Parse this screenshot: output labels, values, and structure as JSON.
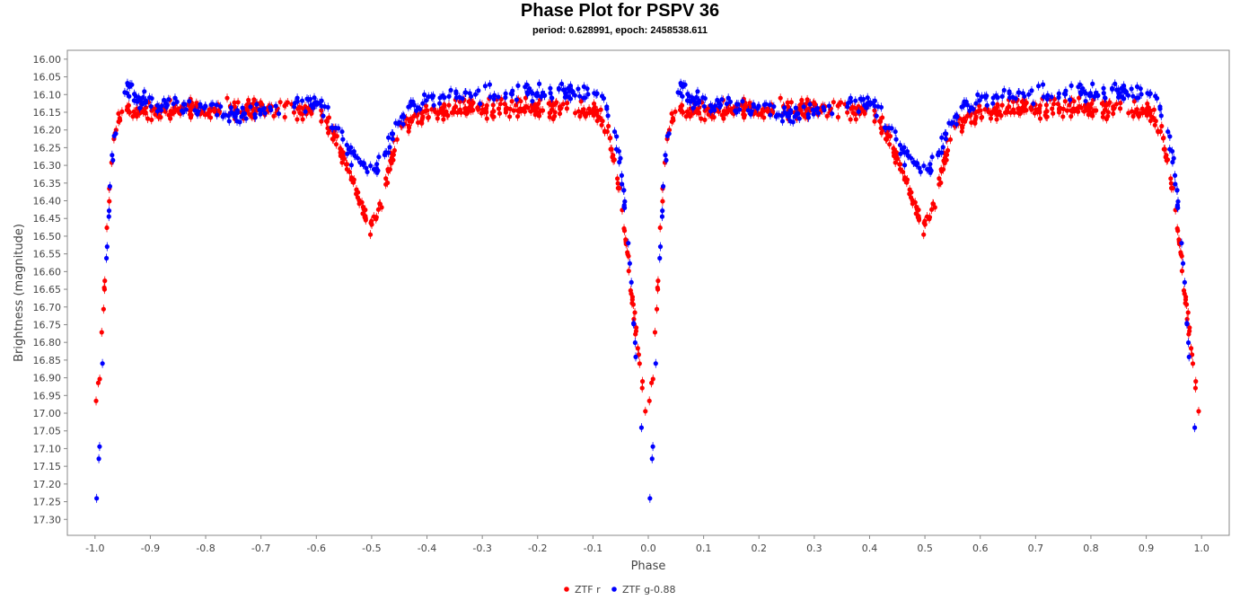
{
  "chart_data": {
    "type": "scatter",
    "title": "Phase Plot for PSPV 36",
    "subtitle": "period: 0.628991, epoch: 2458538.611",
    "xlabel": "Phase",
    "ylabel": "Brightness (magnitude)",
    "xlim": [
      -1.05,
      1.05
    ],
    "ylim": [
      17.345,
      15.975
    ],
    "y_inverted": true,
    "x_ticks": [
      "-1.0",
      "-0.9",
      "-0.8",
      "-0.7",
      "-0.6",
      "-0.5",
      "-0.4",
      "-0.3",
      "-0.2",
      "-0.1",
      "0.0",
      "0.1",
      "0.2",
      "0.3",
      "0.4",
      "0.5",
      "0.6",
      "0.7",
      "0.8",
      "0.9",
      "1.0"
    ],
    "y_ticks": [
      "16.00",
      "16.05",
      "16.10",
      "16.15",
      "16.20",
      "16.25",
      "16.30",
      "16.35",
      "16.40",
      "16.45",
      "16.50",
      "16.55",
      "16.60",
      "16.65",
      "16.70",
      "16.75",
      "16.80",
      "16.85",
      "16.90",
      "16.95",
      "17.00",
      "17.05",
      "17.10",
      "17.15",
      "17.20",
      "17.25",
      "17.30"
    ],
    "grid": false,
    "legend_placement": "bottom-center",
    "series": [
      {
        "name": "ZTF r",
        "color": "#ff0000",
        "x": [
          0.0,
          0.005,
          0.01,
          0.015,
          0.02,
          0.025,
          0.03,
          0.035,
          0.04,
          0.045,
          0.05,
          0.055,
          0.06,
          0.065,
          0.07,
          0.08,
          0.1,
          0.15,
          0.2,
          0.25,
          0.3,
          0.35,
          0.4,
          0.42,
          0.44,
          0.46,
          0.47,
          0.48,
          0.49,
          0.5,
          0.51,
          0.52,
          0.53,
          0.54,
          0.56,
          0.6,
          0.65,
          0.7,
          0.75,
          0.8,
          0.85,
          0.9,
          0.92,
          0.93,
          0.94,
          0.95,
          0.96,
          0.97,
          0.98,
          0.99,
          1.0
        ],
        "y": [
          17.0,
          16.95,
          16.85,
          16.72,
          16.55,
          16.4,
          16.3,
          16.22,
          16.18,
          16.16,
          16.15,
          16.15,
          16.14,
          16.14,
          16.15,
          16.15,
          16.15,
          16.14,
          16.14,
          16.14,
          16.14,
          16.14,
          16.15,
          16.18,
          16.24,
          16.32,
          16.37,
          16.42,
          16.45,
          16.47,
          16.44,
          16.4,
          16.33,
          16.26,
          16.18,
          16.15,
          16.14,
          16.14,
          16.14,
          16.14,
          16.14,
          16.15,
          16.18,
          16.22,
          16.3,
          16.4,
          16.52,
          16.65,
          16.8,
          16.93,
          17.02
        ]
      },
      {
        "name": "ZTF g-0.88",
        "color": "#0000ff",
        "x": [
          0.0,
          0.005,
          0.01,
          0.015,
          0.02,
          0.025,
          0.03,
          0.035,
          0.04,
          0.045,
          0.05,
          0.055,
          0.06,
          0.065,
          0.07,
          0.08,
          0.1,
          0.15,
          0.2,
          0.25,
          0.3,
          0.35,
          0.4,
          0.42,
          0.44,
          0.46,
          0.47,
          0.48,
          0.49,
          0.5,
          0.51,
          0.52,
          0.53,
          0.54,
          0.56,
          0.6,
          0.65,
          0.7,
          0.75,
          0.8,
          0.85,
          0.9,
          0.92,
          0.93,
          0.94,
          0.95,
          0.96,
          0.97,
          0.98,
          0.99,
          1.0
        ],
        "y": [
          17.28,
          17.2,
          17.02,
          16.8,
          16.6,
          16.42,
          16.3,
          16.22,
          16.16,
          16.12,
          16.1,
          16.09,
          16.09,
          16.09,
          16.1,
          16.11,
          16.12,
          16.13,
          16.14,
          16.15,
          16.15,
          16.13,
          16.12,
          16.15,
          16.2,
          16.26,
          16.28,
          16.3,
          16.3,
          16.3,
          16.3,
          16.28,
          16.25,
          16.21,
          16.15,
          16.11,
          16.1,
          16.1,
          16.09,
          16.09,
          16.09,
          16.1,
          16.12,
          16.15,
          16.2,
          16.3,
          16.45,
          16.65,
          16.9,
          17.1,
          17.25
        ]
      }
    ]
  }
}
